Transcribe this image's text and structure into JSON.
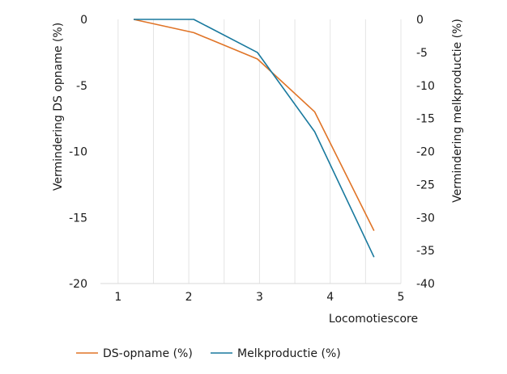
{
  "chart_data": {
    "type": "line",
    "xlabel": "Locomotiescore",
    "ylabel_left": "Vermindering DS opname (%)",
    "ylabel_right": "Vermindering melkproductie (%)",
    "xlim": [
      0.75,
      5
    ],
    "x_ticks": [
      1,
      2,
      3,
      4,
      5
    ],
    "ylim_left": [
      -20,
      0
    ],
    "y_ticks_left": [
      0,
      -5,
      -10,
      -15,
      -20
    ],
    "ylim_right": [
      -40,
      0
    ],
    "y_ticks_right": [
      0,
      -5,
      -10,
      -15,
      -20,
      -25,
      -30,
      -35,
      -40
    ],
    "grid": "vertical",
    "legend_position": "bottom",
    "series": [
      {
        "name": "DS-opname (%)",
        "axis": "left",
        "color": "#e07427",
        "x": [
          1.22,
          2.07,
          2.97,
          3.78,
          4.62
        ],
        "values": [
          0,
          -1,
          -3,
          -7,
          -16
        ]
      },
      {
        "name": "Melkproductie (%)",
        "axis": "right",
        "color": "#19799e",
        "x": [
          1.22,
          2.07,
          2.97,
          3.78,
          4.62
        ],
        "values": [
          0,
          0,
          -5,
          -17,
          -36
        ]
      }
    ]
  }
}
